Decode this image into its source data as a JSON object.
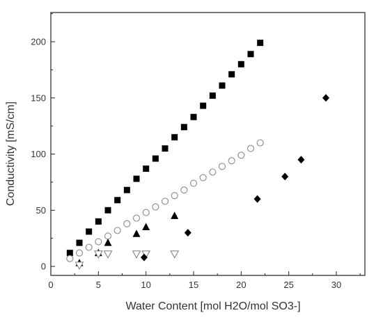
{
  "chart_data": {
    "type": "scatter",
    "title": "",
    "xlabel": "Water Content [mol H2O/mol SO3-]",
    "ylabel": "Conductivity [mS/cm]",
    "xlim": [
      0,
      33
    ],
    "ylim": [
      -8,
      226
    ],
    "x_ticks": [
      0,
      5,
      10,
      15,
      20,
      25,
      30
    ],
    "y_ticks": [
      0,
      50,
      100,
      150,
      200
    ],
    "grid": false,
    "legend": "none",
    "series": [
      {
        "marker": "filled-square",
        "color": "#000000",
        "points": [
          [
            2,
            12
          ],
          [
            3,
            21
          ],
          [
            4,
            31
          ],
          [
            5,
            40
          ],
          [
            6,
            50
          ],
          [
            7,
            59
          ],
          [
            8,
            68
          ],
          [
            9,
            78
          ],
          [
            10,
            87
          ],
          [
            11,
            96
          ],
          [
            12,
            105
          ],
          [
            13,
            115
          ],
          [
            14,
            124
          ],
          [
            15,
            133
          ],
          [
            16,
            143
          ],
          [
            17,
            152
          ],
          [
            18,
            161
          ],
          [
            19,
            171
          ],
          [
            20,
            180
          ],
          [
            21,
            189
          ],
          [
            22,
            199
          ]
        ]
      },
      {
        "marker": "open-circle",
        "color": "#888888",
        "points": [
          [
            2,
            7
          ],
          [
            3,
            12
          ],
          [
            4,
            17
          ],
          [
            5,
            22
          ],
          [
            6,
            27
          ],
          [
            7,
            32
          ],
          [
            8,
            38
          ],
          [
            9,
            43
          ],
          [
            10,
            48
          ],
          [
            11,
            53
          ],
          [
            12,
            58
          ],
          [
            13,
            63
          ],
          [
            14,
            68
          ],
          [
            15,
            74
          ],
          [
            16,
            79
          ],
          [
            17,
            84
          ],
          [
            18,
            89
          ],
          [
            19,
            94
          ],
          [
            20,
            99
          ],
          [
            21,
            105
          ],
          [
            22,
            110
          ]
        ]
      },
      {
        "marker": "filled-triangle",
        "color": "#000000",
        "points": [
          [
            3,
            3
          ],
          [
            5,
            12
          ],
          [
            6,
            21
          ],
          [
            9,
            29
          ],
          [
            10,
            35
          ],
          [
            13,
            45
          ]
        ]
      },
      {
        "marker": "open-triangle-down",
        "color": "#888888",
        "points": [
          [
            3,
            1
          ],
          [
            5,
            11
          ],
          [
            6,
            11
          ],
          [
            9,
            11
          ],
          [
            10,
            11
          ],
          [
            13,
            11
          ]
        ]
      },
      {
        "marker": "filled-diamond",
        "color": "#000000",
        "points": [
          [
            9.8,
            8
          ],
          [
            14.4,
            30
          ],
          [
            21.7,
            60
          ],
          [
            24.6,
            80
          ],
          [
            26.3,
            95
          ],
          [
            28.9,
            150
          ]
        ]
      }
    ]
  }
}
